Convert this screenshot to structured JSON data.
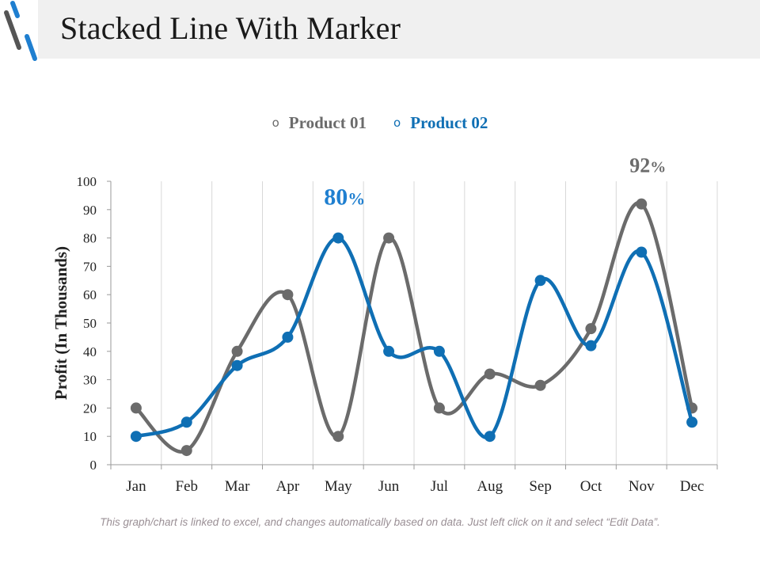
{
  "title": "Stacked Line With Marker",
  "colors": {
    "product01": "#6b6b6b",
    "product02": "#0f6fb4",
    "accent_dark": "#3a3a3a",
    "accent_blue": "#1f7fd0",
    "grid": "#d8d8d8",
    "title_band": "#f0f0f0",
    "footnote": "#9a8f95"
  },
  "legend": {
    "marker": "o",
    "items": [
      {
        "label": "Product 01"
      },
      {
        "label": "Product 02"
      }
    ]
  },
  "chart_data": {
    "type": "line",
    "categories": [
      "Jan",
      "Feb",
      "Mar",
      "Apr",
      "May",
      "Jun",
      "Jul",
      "Aug",
      "Sep",
      "Oct",
      "Nov",
      "Dec"
    ],
    "series": [
      {
        "name": "Product 01",
        "values": [
          20,
          5,
          40,
          60,
          10,
          80,
          20,
          32,
          28,
          48,
          92,
          20
        ]
      },
      {
        "name": "Product 02",
        "values": [
          10,
          15,
          35,
          45,
          80,
          40,
          40,
          10,
          65,
          42,
          75,
          15
        ]
      }
    ],
    "ylim": [
      0,
      100
    ],
    "yticks": [
      0,
      10,
      20,
      30,
      40,
      50,
      60,
      70,
      80,
      90,
      100
    ],
    "ylabel": "Profit (In Thousands)",
    "xlabel": "",
    "grid": "vertical",
    "markers": true,
    "smooth": true,
    "legend_position": "top-center",
    "annotations": [
      {
        "text": "80%",
        "series": "Product 02",
        "category": "May"
      },
      {
        "text": "92%",
        "series": "Product 01",
        "category": "Nov"
      }
    ]
  },
  "footnote": "This graph/chart is linked to excel, and changes automatically based on data. Just left click on it and select “Edit Data”."
}
